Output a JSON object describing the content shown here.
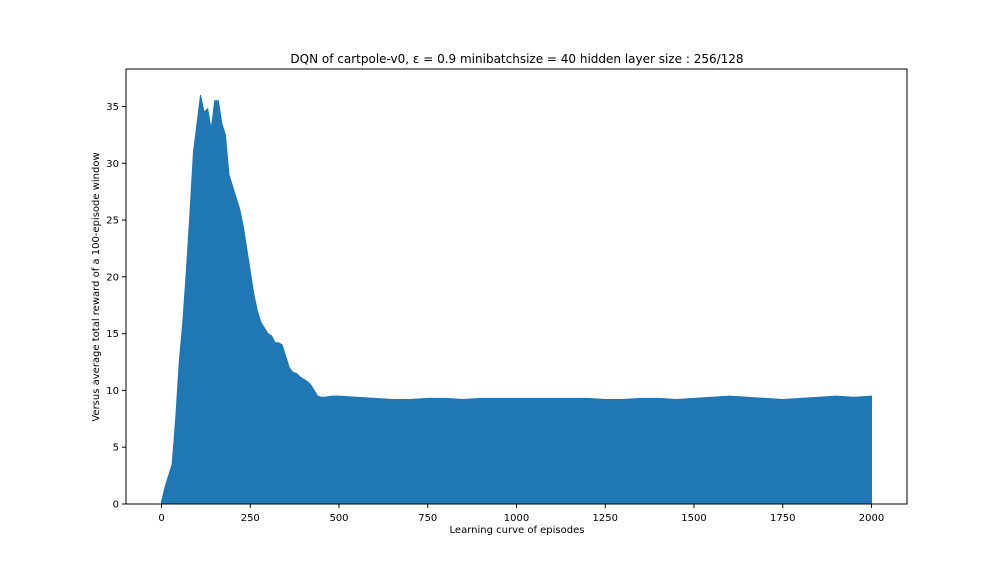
{
  "chart_data": {
    "type": "area",
    "title": "DQN of cartpole-v0, ε = 0.9 minibatchsize = 40 hidden layer size : 256/128",
    "xlabel": "Learning curve of episodes",
    "ylabel": "Versus average total reward of a 100-episode window",
    "xlim": [
      -100,
      2100
    ],
    "ylim": [
      0,
      38.3
    ],
    "xticks": [
      0,
      250,
      500,
      750,
      1000,
      1250,
      1500,
      1750,
      2000
    ],
    "xtick_labels": [
      "0",
      "250",
      "500",
      "750",
      "1000",
      "1250",
      "1500",
      "1750",
      "2000"
    ],
    "yticks": [
      0,
      5,
      10,
      15,
      20,
      25,
      30,
      35
    ],
    "ytick_labels": [
      "0",
      "5",
      "10",
      "15",
      "20",
      "25",
      "30",
      "35"
    ],
    "grid": false,
    "color": "#1f77b4",
    "series": [
      {
        "x": [
          0,
          10,
          20,
          30,
          40,
          50,
          60,
          70,
          80,
          90,
          100,
          110,
          120,
          130,
          140,
          150,
          160,
          170,
          180,
          190,
          200,
          210,
          220,
          230,
          240,
          250,
          260,
          270,
          280,
          290,
          300,
          310,
          320,
          330,
          340,
          350,
          360,
          370,
          380,
          390,
          400,
          410,
          420,
          430,
          440,
          450,
          460,
          480,
          500,
          550,
          600,
          650,
          700,
          750,
          800,
          850,
          900,
          950,
          1000,
          1050,
          1100,
          1150,
          1200,
          1250,
          1300,
          1350,
          1400,
          1450,
          1500,
          1550,
          1600,
          1650,
          1700,
          1750,
          1800,
          1850,
          1900,
          1950,
          2000
        ],
        "y": [
          0.2,
          1.5,
          2.5,
          3.5,
          7.5,
          12.5,
          16.0,
          20.5,
          25.5,
          31.0,
          33.5,
          36.0,
          34.5,
          34.8,
          33.0,
          35.5,
          35.5,
          33.5,
          32.5,
          29.0,
          28.0,
          27.0,
          26.0,
          24.5,
          22.5,
          20.5,
          18.5,
          17.0,
          16.0,
          15.5,
          15.0,
          14.8,
          14.2,
          14.2,
          14.0,
          13.0,
          12.0,
          11.6,
          11.5,
          11.2,
          11.0,
          10.8,
          10.5,
          10.0,
          9.5,
          9.4,
          9.4,
          9.5,
          9.5,
          9.4,
          9.3,
          9.2,
          9.2,
          9.3,
          9.3,
          9.2,
          9.3,
          9.3,
          9.3,
          9.3,
          9.3,
          9.3,
          9.3,
          9.2,
          9.2,
          9.3,
          9.3,
          9.2,
          9.3,
          9.4,
          9.5,
          9.4,
          9.3,
          9.2,
          9.3,
          9.4,
          9.5,
          9.4,
          9.5
        ]
      }
    ]
  }
}
